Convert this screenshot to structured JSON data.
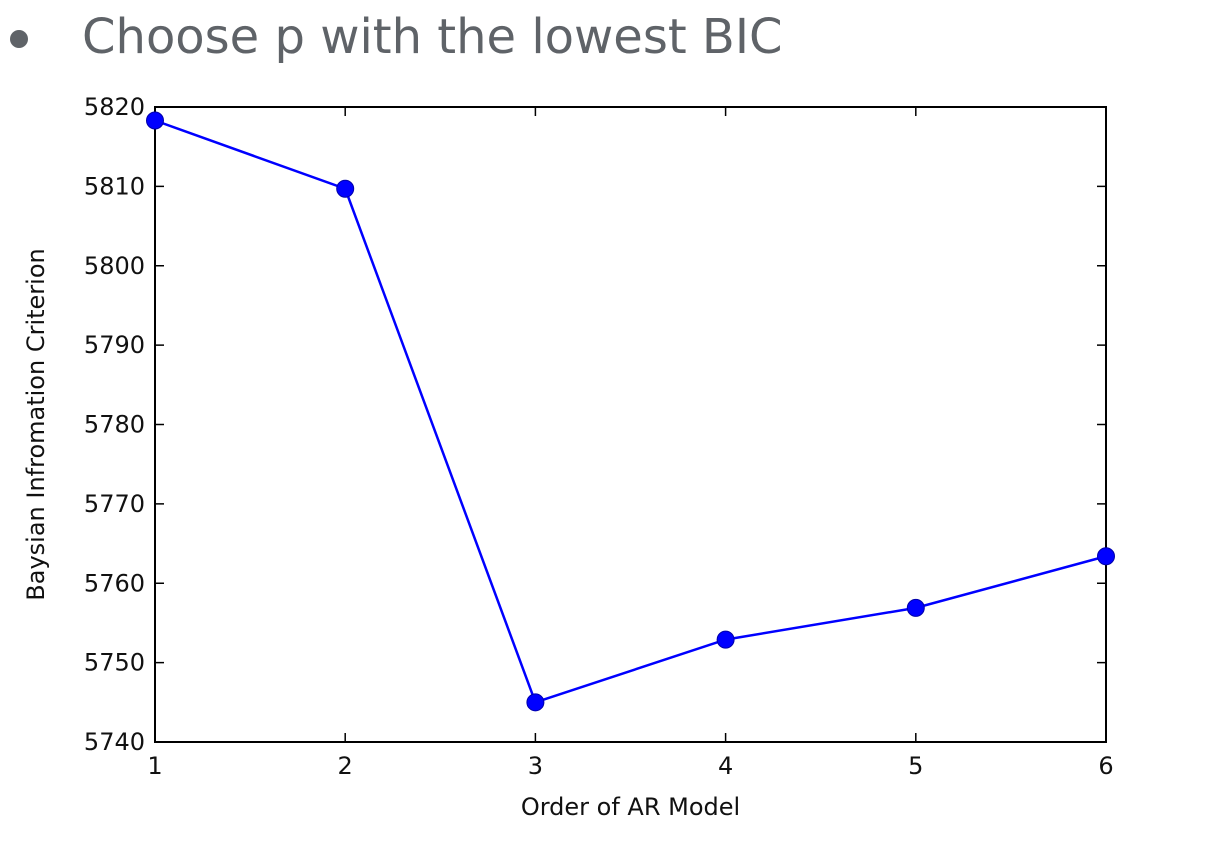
{
  "bullet": {
    "text": "Choose p with the lowest BIC"
  },
  "colors": {
    "bullet_text": "#5f6368",
    "series": "#0000ff",
    "axes": "#000000"
  },
  "chart_data": {
    "type": "line",
    "title": "",
    "xlabel": "Order of AR Model",
    "ylabel": "Baysian Infromation Criterion",
    "x": [
      1,
      2,
      3,
      4,
      5,
      6
    ],
    "xlim": [
      1,
      6
    ],
    "ylim": [
      5740,
      5820
    ],
    "xticks": [
      "1",
      "2",
      "3",
      "4",
      "5",
      "6"
    ],
    "yticks": [
      "5740",
      "5750",
      "5760",
      "5770",
      "5780",
      "5790",
      "5800",
      "5810",
      "5820"
    ],
    "grid": false,
    "legend": "none",
    "markers": "circle",
    "series": [
      {
        "values": [
          5818.3,
          5809.7,
          5745.0,
          5752.9,
          5756.9,
          5763.4
        ]
      }
    ]
  }
}
